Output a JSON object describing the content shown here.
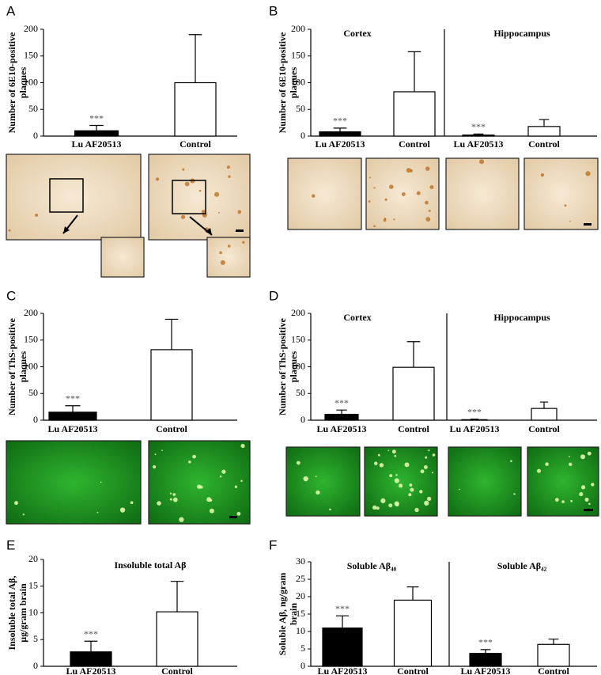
{
  "chart_data": [
    {
      "type": "bar",
      "panel": "A",
      "ylabel": [
        "Number of 6E10-positive",
        "plaques"
      ],
      "ylim": [
        0,
        200
      ],
      "yticks": [
        0,
        50,
        100,
        150,
        200
      ],
      "colors": [
        "#000000",
        "#ffffff"
      ],
      "groups": [
        {
          "categories": [
            "Lu AF20513",
            "Control"
          ],
          "values": [
            10,
            100
          ],
          "errors": [
            10,
            90
          ],
          "annotation": "***"
        }
      ]
    },
    {
      "type": "bar",
      "panel": "B",
      "ylabel": [
        "Number of 6E10-positive",
        "plaques"
      ],
      "ylim": [
        0,
        200
      ],
      "yticks": [
        0,
        50,
        100,
        150,
        200
      ],
      "colors": [
        "#000000",
        "#ffffff"
      ],
      "groups": [
        {
          "title": "Cortex",
          "categories": [
            "Lu AF20513",
            "Control"
          ],
          "values": [
            8,
            83
          ],
          "errors": [
            7,
            75
          ],
          "annotation": "***"
        },
        {
          "title": "Hippocampus",
          "categories": [
            "Lu AF20513",
            "Control"
          ],
          "values": [
            2,
            18
          ],
          "errors": [
            2,
            13
          ],
          "annotation": "***"
        }
      ]
    },
    {
      "type": "bar",
      "panel": "C",
      "ylabel": [
        "Number of ThS-positive",
        "plaques"
      ],
      "ylim": [
        0,
        200
      ],
      "yticks": [
        0,
        50,
        100,
        150,
        200
      ],
      "colors": [
        "#000000",
        "#ffffff"
      ],
      "groups": [
        {
          "categories": [
            "Lu AF20513",
            "Control"
          ],
          "values": [
            15,
            132
          ],
          "errors": [
            12,
            57
          ],
          "annotation": "***"
        }
      ]
    },
    {
      "type": "bar",
      "panel": "D",
      "ylabel": [
        "Number of ThS-positive",
        "plaques"
      ],
      "ylim": [
        0,
        200
      ],
      "yticks": [
        0,
        50,
        100,
        150,
        200
      ],
      "colors": [
        "#000000",
        "#ffffff"
      ],
      "groups": [
        {
          "title": "Cortex",
          "categories": [
            "Lu AF20513",
            "Control"
          ],
          "values": [
            11,
            99
          ],
          "errors": [
            8,
            48
          ],
          "annotation": "***"
        },
        {
          "title": "Hippocampus",
          "categories": [
            "Lu AF20513",
            "Control"
          ],
          "values": [
            1,
            22
          ],
          "errors": [
            1,
            12
          ],
          "annotation": "***"
        }
      ]
    },
    {
      "type": "bar",
      "panel": "E",
      "ylabel": [
        "Insoluble total Aβ,",
        "μg/gram brain"
      ],
      "ylim": [
        0,
        20
      ],
      "yticks": [
        0,
        5,
        10,
        15,
        20
      ],
      "colors": [
        "#000000",
        "#ffffff"
      ],
      "groups": [
        {
          "title": "Insoluble total Aβ",
          "categories": [
            "Lu AF20513",
            "Control"
          ],
          "values": [
            2.7,
            10.2
          ],
          "errors": [
            2.0,
            5.7
          ],
          "annotation": "***"
        }
      ]
    },
    {
      "type": "bar",
      "panel": "F",
      "ylabel": [
        "Soluble Aβ, ng/gram",
        "brain"
      ],
      "ylim": [
        0,
        30
      ],
      "yticks": [
        0,
        5,
        10,
        15,
        20,
        25,
        30
      ],
      "colors": [
        "#000000",
        "#ffffff"
      ],
      "groups": [
        {
          "title": "Soluble Aβ₄₀",
          "categories": [
            "Lu AF20513",
            "Control"
          ],
          "values": [
            11,
            19
          ],
          "errors": [
            3.5,
            3.8
          ],
          "annotation": "***"
        },
        {
          "title": "Soluble Aβ₄₂",
          "categories": [
            "Lu AF20513",
            "Control"
          ],
          "values": [
            3.7,
            6.3
          ],
          "errors": [
            1.1,
            1.5
          ],
          "annotation": "***"
        }
      ]
    }
  ]
}
